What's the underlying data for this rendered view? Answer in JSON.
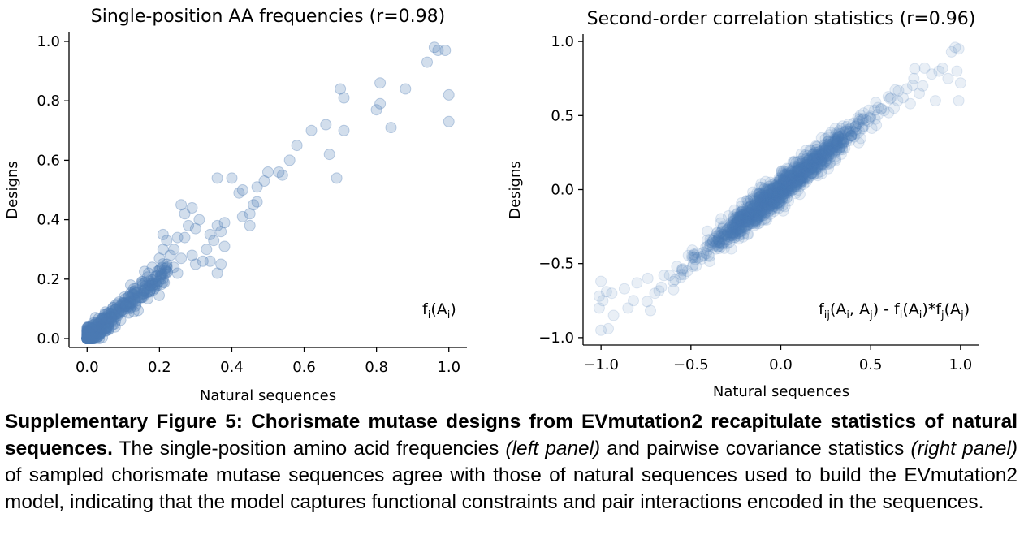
{
  "chart_data": [
    {
      "type": "scatter",
      "title": "Single-position AA frequencies (r=0.98)",
      "xlabel": "Natural sequences",
      "ylabel": "Designs",
      "xlim": [
        -0.05,
        1.05
      ],
      "ylim": [
        -0.03,
        1.03
      ],
      "xticks": [
        "0.0",
        "0.2",
        "0.4",
        "0.6",
        "0.8",
        "1.0"
      ],
      "yticks": [
        "0.0",
        "0.2",
        "0.4",
        "0.6",
        "0.8",
        "1.0"
      ],
      "annotation": {
        "main": "f",
        "sub1": "i",
        "mid": "(A",
        "sub2": "i",
        "end": ")"
      },
      "point_color": "#4c7bb5",
      "grid": false,
      "legend": "none",
      "points": [
        [
          0.97,
          0.97
        ],
        [
          0.99,
          0.97
        ],
        [
          0.96,
          0.98
        ],
        [
          0.94,
          0.93
        ],
        [
          1.0,
          0.82
        ],
        [
          1.0,
          0.73
        ],
        [
          0.88,
          0.84
        ],
        [
          0.81,
          0.86
        ],
        [
          0.81,
          0.79
        ],
        [
          0.8,
          0.77
        ],
        [
          0.84,
          0.71
        ],
        [
          0.7,
          0.84
        ],
        [
          0.71,
          0.81
        ],
        [
          0.66,
          0.72
        ],
        [
          0.71,
          0.7
        ],
        [
          0.62,
          0.7
        ],
        [
          0.67,
          0.62
        ],
        [
          0.69,
          0.54
        ],
        [
          0.58,
          0.65
        ],
        [
          0.56,
          0.6
        ],
        [
          0.53,
          0.56
        ],
        [
          0.54,
          0.55
        ],
        [
          0.5,
          0.56
        ],
        [
          0.49,
          0.53
        ],
        [
          0.47,
          0.51
        ],
        [
          0.47,
          0.46
        ],
        [
          0.46,
          0.45
        ],
        [
          0.43,
          0.5
        ],
        [
          0.42,
          0.49
        ],
        [
          0.4,
          0.54
        ],
        [
          0.36,
          0.54
        ],
        [
          0.45,
          0.42
        ],
        [
          0.45,
          0.38
        ],
        [
          0.43,
          0.41
        ],
        [
          0.38,
          0.39
        ],
        [
          0.37,
          0.36
        ],
        [
          0.36,
          0.38
        ],
        [
          0.35,
          0.33
        ],
        [
          0.34,
          0.35
        ],
        [
          0.38,
          0.31
        ],
        [
          0.37,
          0.25
        ],
        [
          0.34,
          0.26
        ],
        [
          0.36,
          0.22
        ],
        [
          0.33,
          0.3
        ],
        [
          0.32,
          0.26
        ],
        [
          0.3,
          0.25
        ],
        [
          0.3,
          0.37
        ],
        [
          0.31,
          0.4
        ],
        [
          0.28,
          0.38
        ],
        [
          0.27,
          0.42
        ],
        [
          0.29,
          0.44
        ],
        [
          0.26,
          0.45
        ],
        [
          0.27,
          0.34
        ],
        [
          0.29,
          0.28
        ],
        [
          0.25,
          0.34
        ],
        [
          0.24,
          0.3
        ],
        [
          0.23,
          0.28
        ],
        [
          0.22,
          0.33
        ],
        [
          0.22,
          0.25
        ],
        [
          0.21,
          0.3
        ],
        [
          0.25,
          0.22
        ],
        [
          0.24,
          0.24
        ],
        [
          0.2,
          0.27
        ],
        [
          0.2,
          0.23
        ],
        [
          0.19,
          0.21
        ],
        [
          0.21,
          0.19
        ],
        [
          0.18,
          0.24
        ],
        [
          0.17,
          0.22
        ],
        [
          0.26,
          0.27
        ],
        [
          0.21,
          0.35
        ]
      ]
    },
    {
      "type": "scatter",
      "title": "Second-order correlation statistics (r=0.96)",
      "xlabel": "Natural sequences",
      "ylabel": "Designs",
      "xlim": [
        -1.1,
        1.1
      ],
      "ylim": [
        -1.05,
        1.05
      ],
      "xticks": [
        "−1.0",
        "−0.5",
        "0.0",
        "0.5",
        "1.0"
      ],
      "yticks": [
        "−1.0",
        "−0.5",
        "0.0",
        "0.5",
        "1.0"
      ],
      "annotation": {
        "main": "f",
        "sub1": "ij",
        "mid": "(A",
        "sub2": "i",
        "mid2": ", A",
        "sub3": "j",
        "mid3": ") - f",
        "sub4": "i",
        "mid4": "(A",
        "sub5": "i",
        "mid5": ")*f",
        "sub6": "j",
        "mid6": "(A",
        "sub7": "j",
        "end": ")"
      },
      "point_color": "#4c7bb5",
      "grid": false,
      "legend": "none",
      "points": [
        [
          -1.0,
          -0.95
        ],
        [
          -0.96,
          -0.94
        ],
        [
          -1.01,
          -0.8
        ],
        [
          -1.01,
          -0.72
        ],
        [
          -0.99,
          -0.75
        ],
        [
          -0.97,
          -0.69
        ],
        [
          -0.94,
          -0.7
        ],
        [
          -0.87,
          -0.67
        ],
        [
          -0.85,
          -0.8
        ],
        [
          -0.82,
          -0.75
        ],
        [
          -0.8,
          -0.63
        ],
        [
          -0.74,
          -0.6
        ],
        [
          -0.7,
          -0.7
        ],
        [
          -0.65,
          -0.58
        ],
        [
          -0.93,
          -0.85
        ],
        [
          -1.0,
          -0.62
        ],
        [
          0.97,
          0.96
        ],
        [
          0.99,
          0.95
        ],
        [
          0.95,
          0.93
        ],
        [
          0.98,
          0.8
        ],
        [
          1.0,
          0.72
        ],
        [
          0.99,
          0.6
        ],
        [
          0.9,
          0.82
        ],
        [
          0.93,
          0.75
        ],
        [
          0.88,
          0.8
        ],
        [
          0.8,
          0.82
        ],
        [
          0.84,
          0.78
        ],
        [
          0.86,
          0.6
        ],
        [
          0.79,
          0.7
        ],
        [
          0.77,
          0.65
        ],
        [
          0.74,
          0.75
        ],
        [
          0.7,
          0.68
        ],
        [
          0.72,
          0.58
        ],
        [
          0.68,
          0.62
        ],
        [
          0.65,
          0.6
        ],
        [
          0.63,
          0.55
        ],
        [
          0.6,
          0.52
        ]
      ]
    }
  ],
  "caption": {
    "bold": "Supplementary Figure 5: Chorismate mutase designs from EVmutation2 recapitulate statistics of natural sequences.",
    "text1": " The single-position amino acid frequencies ",
    "ital1": "(left panel)",
    "text2": " and pairwise covariance statistics ",
    "ital2": "(right panel)",
    "text3": " of sampled chorismate mutase sequences agree with those of natural sequences used to build the EVmutation2 model, indicating that the model captures functional constraints and pair interactions encoded in the sequences."
  }
}
